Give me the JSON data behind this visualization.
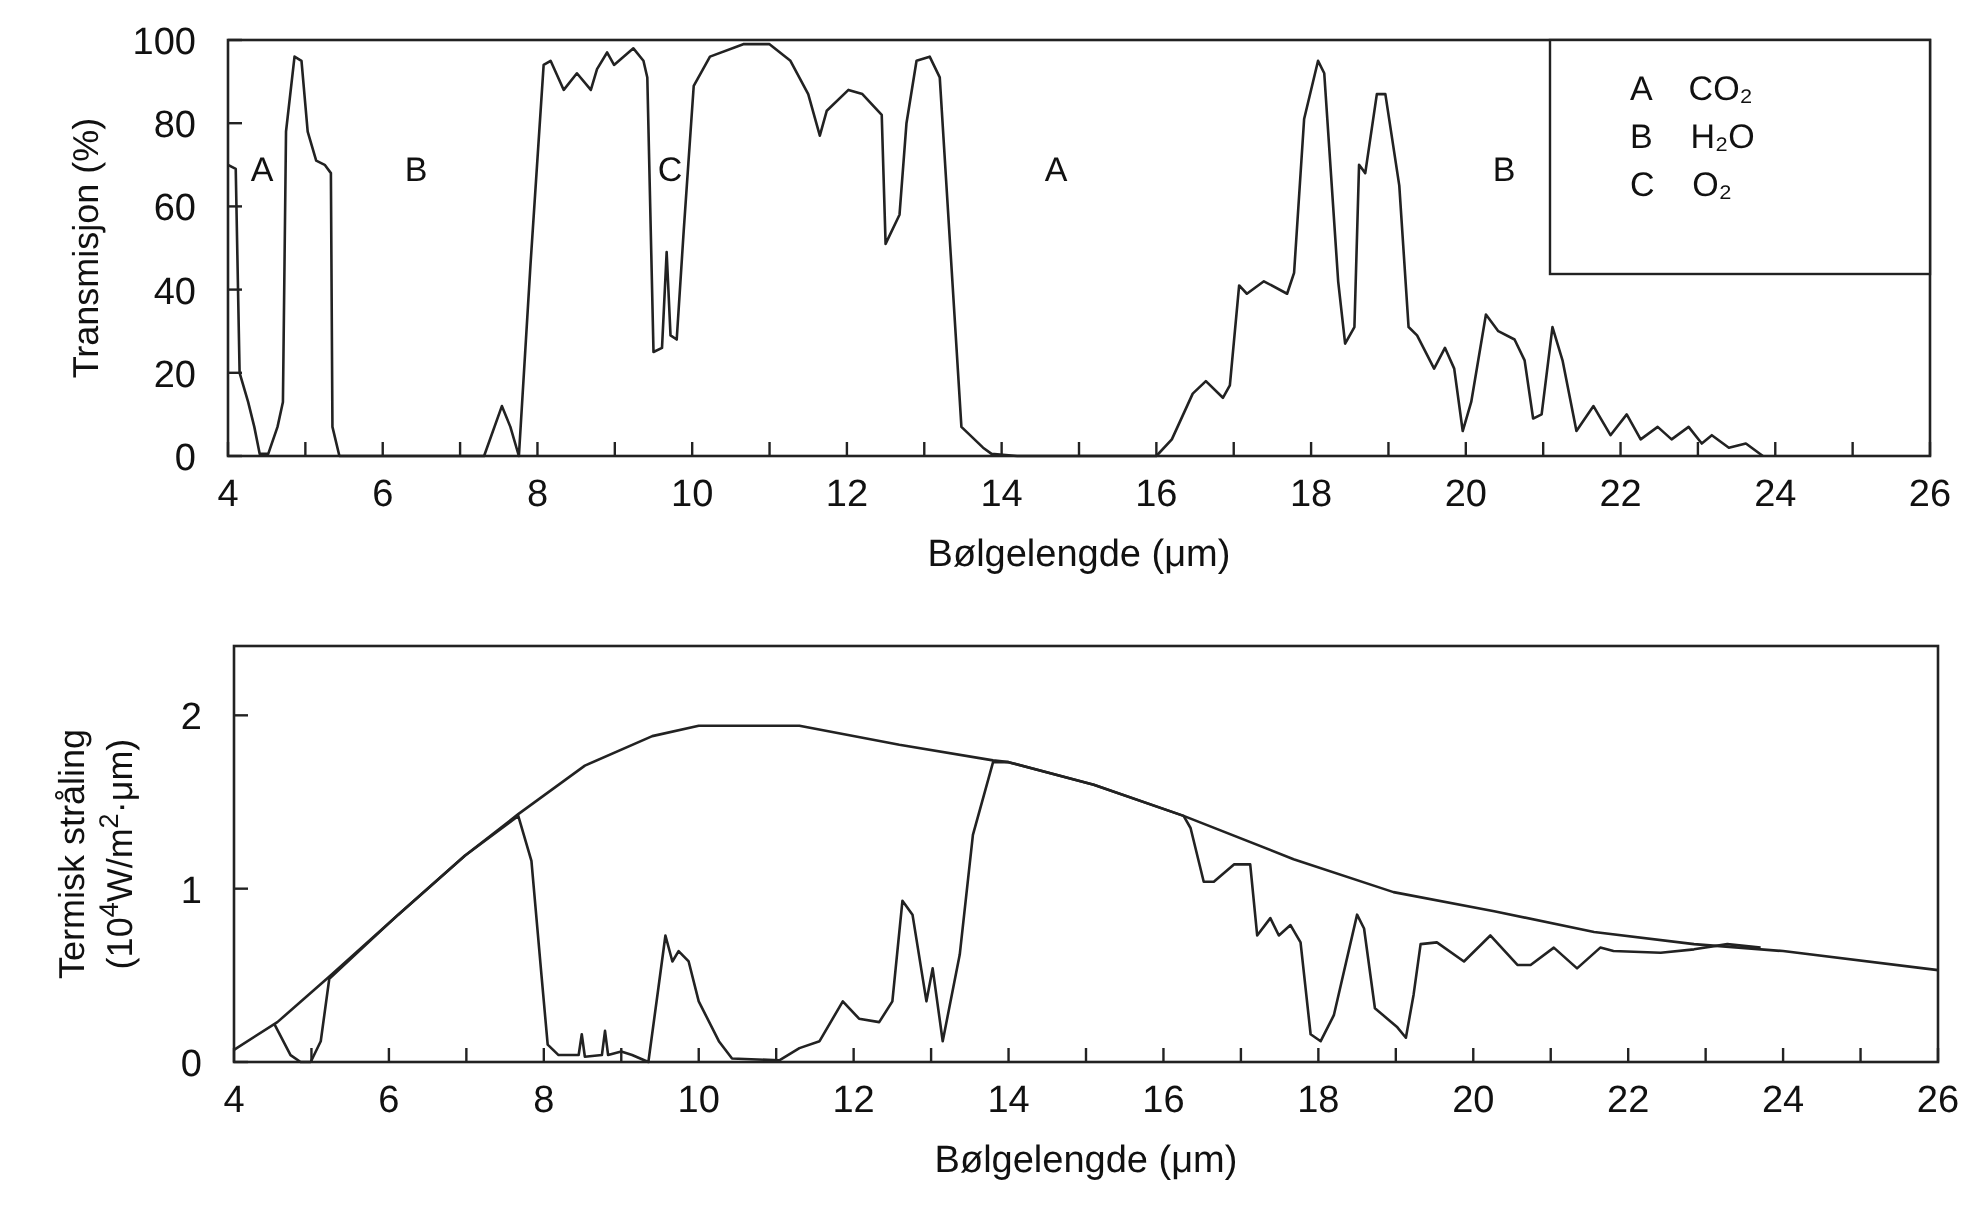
{
  "chart_data": [
    {
      "type": "line",
      "xlabel": "Bølgelengde (μm)",
      "ylabel": "Transmisjon (%)",
      "xlim": [
        4,
        26
      ],
      "ylim": [
        0,
        100
      ],
      "xticks": [
        4,
        {
          "value": 5,
          "label": null
        },
        6,
        {
          "value": 7,
          "label": null
        },
        8,
        {
          "value": 9,
          "label": null
        },
        10,
        {
          "value": 11,
          "label": null
        },
        12,
        {
          "value": 13,
          "label": null
        },
        14,
        {
          "value": 15,
          "label": null
        },
        16,
        {
          "value": 17,
          "label": null
        },
        18,
        {
          "value": 19,
          "label": null
        },
        20,
        {
          "value": 21,
          "label": null
        },
        22,
        {
          "value": 23,
          "label": null
        },
        24,
        {
          "value": 25,
          "label": null
        },
        26
      ],
      "yticks": [
        0,
        20,
        40,
        60,
        80,
        100
      ],
      "grid": false,
      "series": [
        {
          "color": "#222222",
          "x": [
            4.0,
            4.1,
            4.15,
            4.26,
            4.34,
            4.41,
            4.52,
            4.64,
            4.71,
            4.75,
            4.86,
            4.95,
            5.03,
            5.14,
            5.25,
            5.33,
            5.35,
            5.44,
            7.31,
            7.54,
            7.65,
            7.76,
            7.91,
            8.08,
            8.17,
            8.34,
            8.51,
            8.69,
            8.77,
            8.9,
            8.99,
            9.24,
            9.37,
            9.42,
            9.5,
            9.61,
            9.67,
            9.72,
            9.8,
            9.89,
            10.02,
            10.23,
            10.66,
            11.0,
            11.27,
            11.5,
            11.65,
            11.74,
            12.02,
            12.2,
            12.45,
            12.5,
            12.68,
            12.77,
            12.9,
            13.07,
            13.2,
            13.48,
            13.76,
            13.87,
            14.2,
            16.0,
            16.2,
            16.47,
            16.64,
            16.86,
            16.95,
            17.07,
            17.17,
            17.39,
            17.69,
            17.78,
            17.91,
            18.09,
            18.17,
            18.35,
            18.44,
            18.56,
            18.62,
            18.7,
            18.85,
            18.96,
            19.14,
            19.26,
            19.37,
            19.59,
            19.73,
            19.85,
            19.96,
            20.07,
            20.26,
            20.42,
            20.63,
            20.76,
            20.87,
            20.98,
            21.12,
            21.25,
            21.43,
            21.65,
            21.87,
            22.08,
            22.26,
            22.48,
            22.66,
            22.88,
            23.05,
            23.18,
            23.4,
            23.62,
            23.84
          ],
          "values": [
            70,
            69,
            20,
            13,
            7,
            0.5,
            0.5,
            7,
            13,
            78,
            96,
            95,
            78,
            71,
            70,
            68,
            7,
            0,
            0,
            12,
            7,
            0,
            46,
            94,
            95,
            88,
            92,
            88,
            93,
            97,
            94,
            98,
            95,
            91,
            25,
            26,
            49,
            29,
            28,
            54,
            89,
            96,
            99,
            99,
            95,
            87,
            77,
            83,
            88,
            87,
            82,
            51,
            58,
            80,
            95,
            96,
            91,
            7,
            2,
            0.5,
            0,
            0,
            4,
            15,
            18,
            14,
            17,
            41,
            39,
            42,
            39,
            44,
            81,
            95,
            92,
            42,
            27,
            31,
            70,
            68,
            87,
            87,
            65,
            31,
            29,
            21,
            26,
            21,
            6,
            13,
            34,
            30,
            28,
            23,
            9,
            10,
            31,
            23,
            6,
            12,
            5,
            10,
            4,
            7,
            4,
            7,
            3,
            5,
            2,
            3,
            0
          ]
        }
      ],
      "annotations": [
        "A",
        "B",
        "C",
        "A",
        "B",
        "A    CO₂",
        "B    H₂O",
        "C    O₂"
      ]
    },
    {
      "type": "line",
      "xlabel": "Bølgelengde (μm)",
      "ylabel": "Termisk stråling (10$^{4}$W/m$^{2}$·μm)",
      "xlim": [
        4,
        26
      ],
      "ylim": [
        0,
        2.4
      ],
      "xticks": [
        4,
        {
          "value": 5,
          "label": null
        },
        6,
        {
          "value": 7,
          "label": null
        },
        8,
        {
          "value": 9,
          "label": null
        },
        10,
        {
          "value": 11,
          "label": null
        },
        12,
        {
          "value": 13,
          "label": null
        },
        14,
        {
          "value": 15,
          "label": null
        },
        16,
        {
          "value": 17,
          "label": null
        },
        18,
        {
          "value": 19,
          "label": null
        },
        20,
        {
          "value": 21,
          "label": null
        },
        22,
        {
          "value": 23,
          "label": null
        },
        24,
        {
          "value": 25,
          "label": null
        },
        26
      ],
      "yticks": [
        0,
        1,
        2
      ],
      "grid": false,
      "series": [
        {
          "color": "#222222",
          "x": [
            4,
            4.56,
            5.25,
            6.12,
            6.98,
            7.67,
            8.53,
            9.4,
            10.0,
            11.3,
            12.59,
            13.8,
            14,
            15.1,
            16.26,
            17.68,
            18.97,
            20.27,
            21.56,
            22.85,
            24,
            26
          ],
          "values": [
            0.07,
            0.23,
            0.5,
            0.85,
            1.19,
            1.43,
            1.71,
            1.88,
            1.94,
            1.94,
            1.83,
            1.74,
            1.73,
            1.6,
            1.42,
            1.17,
            0.98,
            0.87,
            0.75,
            0.68,
            0.64,
            0.53
          ]
        },
        {
          "color": "#222222",
          "x": [
            4.52,
            4.73,
            4.86,
            4.99,
            5.12,
            5.23,
            6.12,
            6.98,
            7.67,
            7.84,
            7.97,
            8.05,
            8.19,
            8.45,
            8.49,
            8.53,
            8.75,
            8.79,
            8.83,
            9.0,
            9.14,
            9.35,
            9.48,
            9.57,
            9.66,
            9.74,
            9.87,
            10.0,
            10.26,
            10.43,
            11.04,
            11.3,
            11.56,
            11.86,
            12.07,
            12.33,
            12.5,
            12.63,
            12.76,
            12.94,
            13.02,
            13.15,
            13.37,
            13.54,
            13.8,
            14,
            15.1,
            16.26,
            16.35,
            16.52,
            16.65,
            16.91,
            17.12,
            17.21,
            17.38,
            17.49,
            17.64,
            17.77,
            17.9,
            18.03,
            18.2,
            18.5,
            18.59,
            18.73,
            18.89,
            19.02,
            19.13,
            19.23,
            19.32,
            19.53,
            19.88,
            20.22,
            20.57,
            20.74,
            21.04,
            21.34,
            21.64,
            21.81,
            22.42,
            22.85,
            23.28,
            23.71
          ],
          "values": [
            0.22,
            0.04,
            0,
            0,
            0.12,
            0.48,
            0.85,
            1.19,
            1.42,
            1.16,
            0.5,
            0.1,
            0.04,
            0.04,
            0.16,
            0.03,
            0.04,
            0.18,
            0.04,
            0.06,
            0.04,
            0,
            0.43,
            0.73,
            0.58,
            0.64,
            0.58,
            0.35,
            0.12,
            0.02,
            0.01,
            0.08,
            0.12,
            0.35,
            0.25,
            0.23,
            0.35,
            0.93,
            0.85,
            0.35,
            0.54,
            0.12,
            0.62,
            1.31,
            1.73,
            1.73,
            1.6,
            1.42,
            1.35,
            1.04,
            1.04,
            1.14,
            1.14,
            0.73,
            0.83,
            0.73,
            0.79,
            0.69,
            0.16,
            0.12,
            0.27,
            0.85,
            0.77,
            0.31,
            0.25,
            0.2,
            0.14,
            0.39,
            0.68,
            0.69,
            0.58,
            0.73,
            0.56,
            0.56,
            0.66,
            0.54,
            0.66,
            0.64,
            0.63,
            0.65,
            0.68,
            0.66
          ]
        }
      ]
    }
  ]
}
